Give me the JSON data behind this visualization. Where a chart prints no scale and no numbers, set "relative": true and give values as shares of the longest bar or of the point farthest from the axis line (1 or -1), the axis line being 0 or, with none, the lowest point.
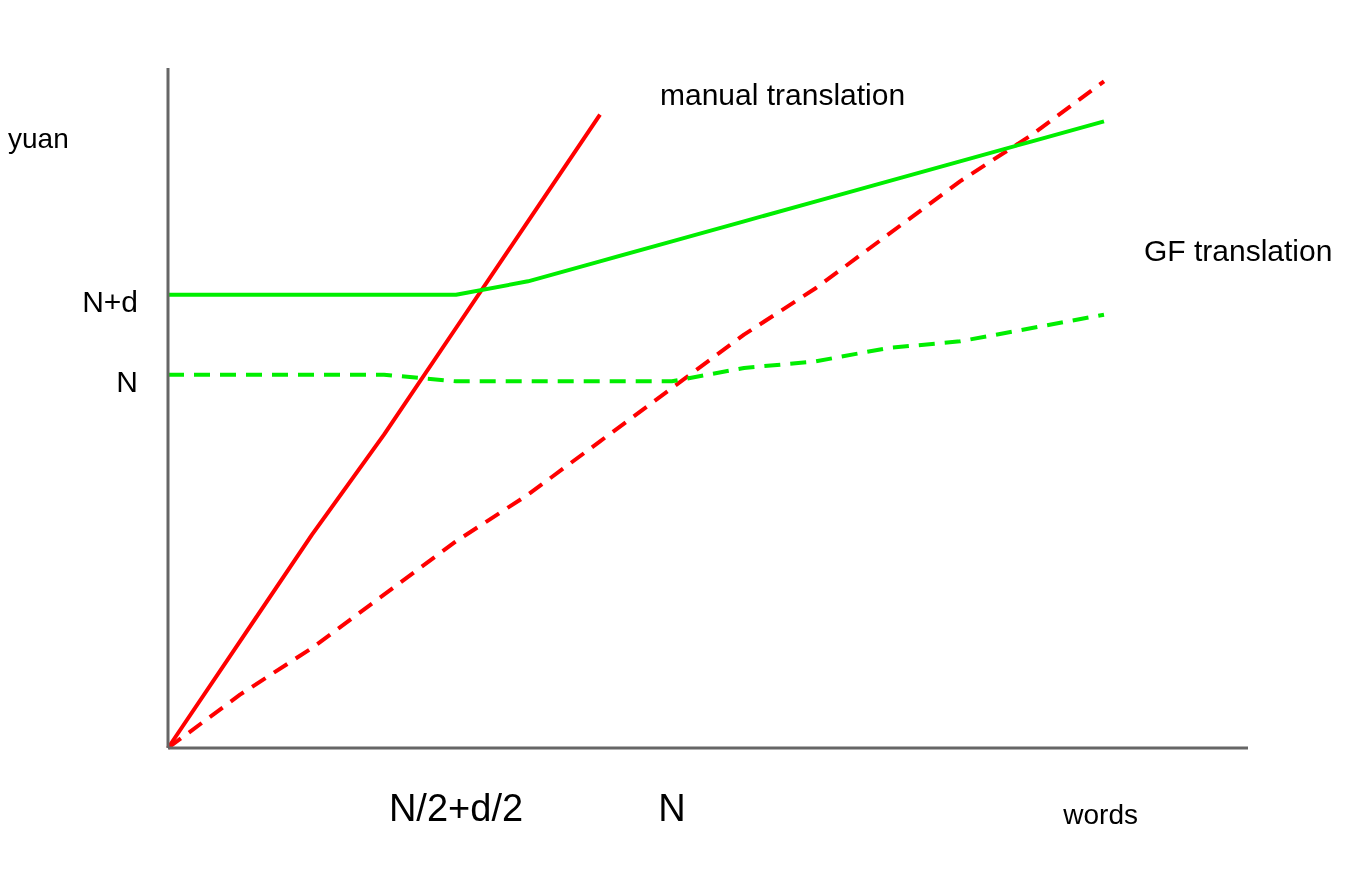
{
  "chart_data": {
    "type": "line",
    "relative": true,
    "xlabel": "words",
    "ylabel": "yuan",
    "categories": [
      null,
      null,
      null,
      null,
      "N/2+d/2",
      null,
      null,
      "N",
      null,
      null,
      null,
      null,
      null,
      null,
      null,
      null
    ],
    "annotations": [
      "N+d",
      "N"
    ],
    "grid": false,
    "legend": false,
    "marker": "none",
    "series": [
      {
        "name": "manual translation",
        "color": "#ff0000",
        "line_style": "solid",
        "values": [
          0,
          0.16,
          0.32,
          0.47,
          0.63,
          0.79,
          0.95,
          null,
          null,
          null,
          null,
          null,
          null,
          null,
          null,
          null
        ]
      },
      {
        "color": "#ff0000",
        "line_style": "dashed",
        "values": [
          0,
          0.08,
          0.15,
          0.23,
          0.31,
          0.38,
          0.46,
          0.54,
          0.62,
          0.69,
          0.77,
          0.85,
          0.92,
          1.0,
          null,
          null
        ]
      },
      {
        "name": "GF translation",
        "color": "#00ee00",
        "line_style": "solid",
        "values": [
          0.68,
          0.68,
          0.68,
          0.68,
          0.68,
          0.7,
          0.73,
          0.76,
          0.79,
          0.82,
          0.85,
          0.88,
          0.91,
          0.94,
          null,
          null
        ]
      },
      {
        "color": "#00ee00",
        "line_style": "dashed",
        "values": [
          0.56,
          0.56,
          0.56,
          0.56,
          0.55,
          0.55,
          0.55,
          0.55,
          0.57,
          0.58,
          0.6,
          0.61,
          0.63,
          0.65,
          null,
          null
        ]
      }
    ]
  }
}
